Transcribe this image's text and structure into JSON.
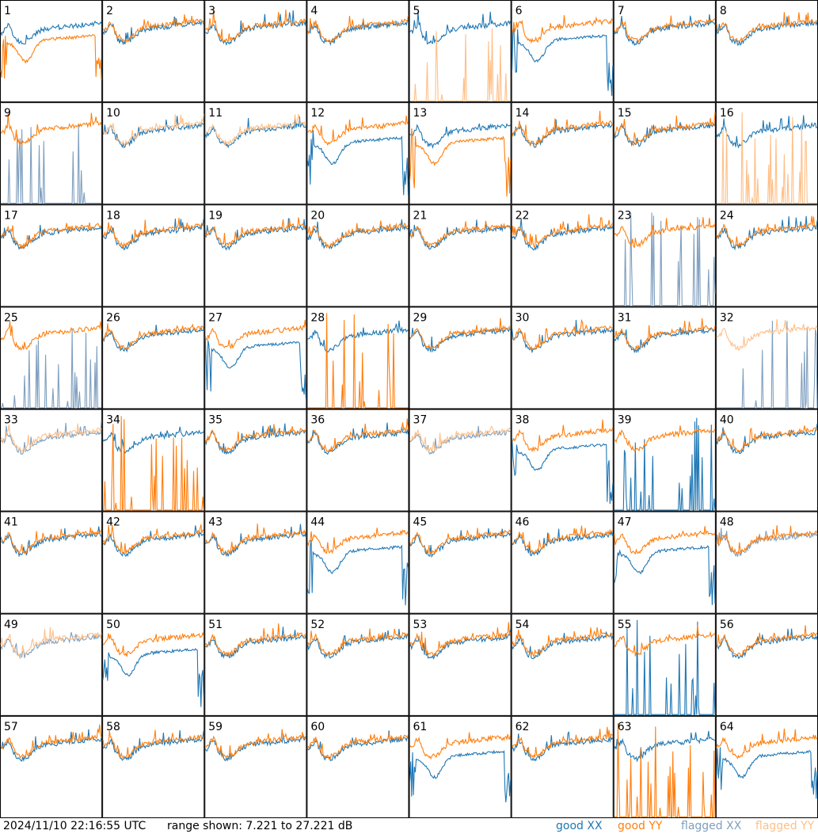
{
  "footer": {
    "timestamp": "2024/11/10 22:16:55 UTC",
    "range_text": "range shown: 7.221 to 27.221 dB"
  },
  "legend": [
    {
      "label": "good XX",
      "color": "#1f77b4"
    },
    {
      "label": "good YY",
      "color": "#ff7f0e"
    },
    {
      "label": "flagged XX",
      "color": "#7f9fbf"
    },
    {
      "label": "flagged YY",
      "color": "#ffbf87"
    }
  ],
  "chart_data": {
    "type": "line",
    "grid": "8x8 small multiples",
    "ylim": [
      7.221,
      27.221
    ],
    "y_unit": "dB",
    "panel_labels": [
      "1",
      "2",
      "3",
      "4",
      "5",
      "6",
      "7",
      "8",
      "9",
      "10",
      "11",
      "12",
      "13",
      "14",
      "15",
      "16",
      "17",
      "18",
      "19",
      "20",
      "21",
      "22",
      "23",
      "24",
      "25",
      "26",
      "27",
      "28",
      "29",
      "30",
      "31",
      "32",
      "33",
      "34",
      "35",
      "36",
      "37",
      "38",
      "39",
      "40",
      "41",
      "42",
      "43",
      "44",
      "45",
      "46",
      "47",
      "48",
      "49",
      "50",
      "51",
      "52",
      "53",
      "54",
      "55",
      "56",
      "57",
      "58",
      "59",
      "60",
      "61",
      "62",
      "63",
      "64"
    ],
    "panel_state": {
      "flagged_xx": [
        "9",
        "23",
        "25",
        "32",
        "33",
        "37",
        "48",
        "49"
      ],
      "flagged_yy": [
        "5",
        "10",
        "11",
        "16",
        "32",
        "33",
        "37",
        "49"
      ],
      "spiky_xx": [
        "9",
        "23",
        "25",
        "32",
        "39",
        "55"
      ],
      "spiky_yy": [
        "5",
        "16",
        "28",
        "34",
        "63"
      ],
      "broken_xx": [
        "6",
        "12",
        "27",
        "38",
        "44",
        "47",
        "50",
        "61",
        "64"
      ],
      "broken_yy": [
        "1",
        "13",
        "28",
        "34",
        "63"
      ]
    }
  }
}
